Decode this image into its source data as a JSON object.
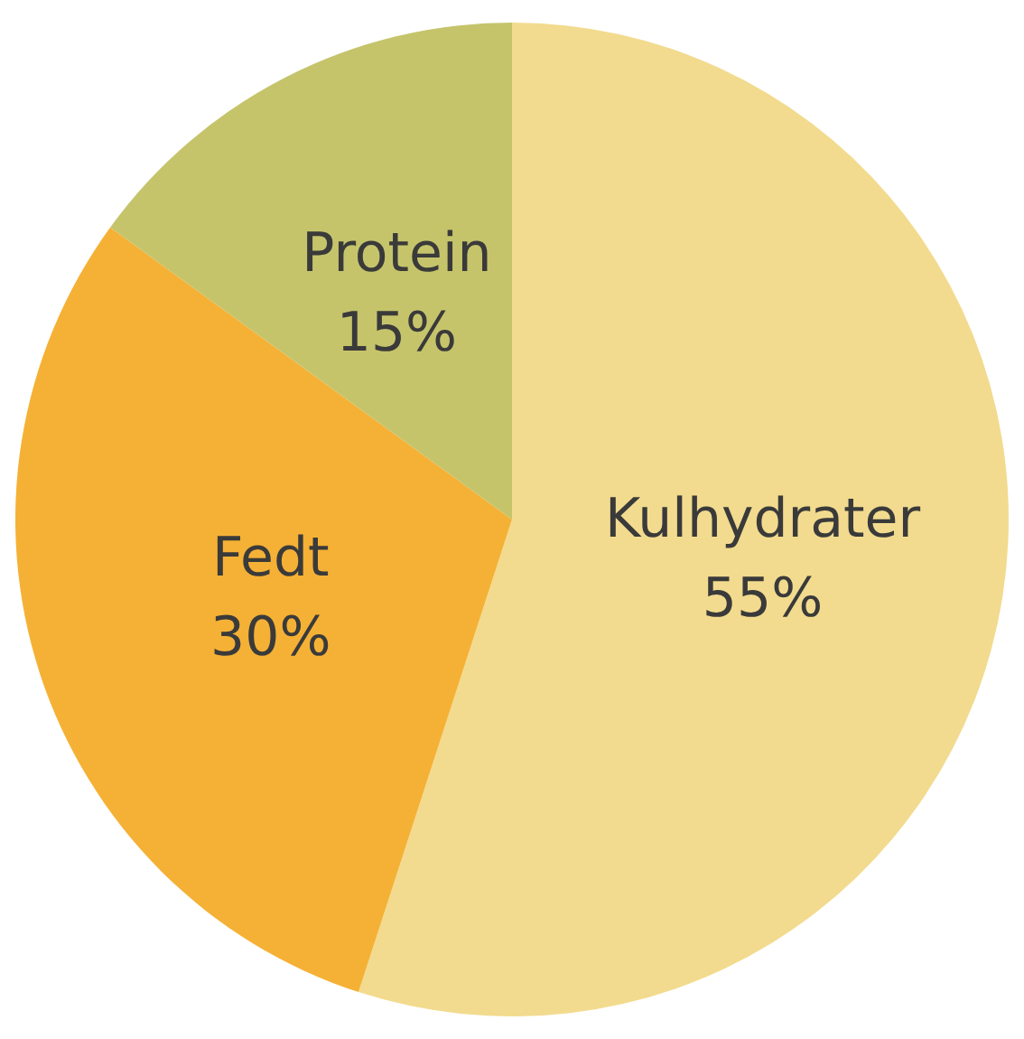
{
  "chart_data": {
    "type": "pie",
    "categories": [
      "Kulhydrater",
      "Fedt",
      "Protein"
    ],
    "values": [
      55,
      30,
      15
    ],
    "colors": [
      "#f2db8e",
      "#f5b135",
      "#c6c46b"
    ],
    "value_labels": [
      "55%",
      "30%",
      "15%"
    ],
    "legend": false
  }
}
